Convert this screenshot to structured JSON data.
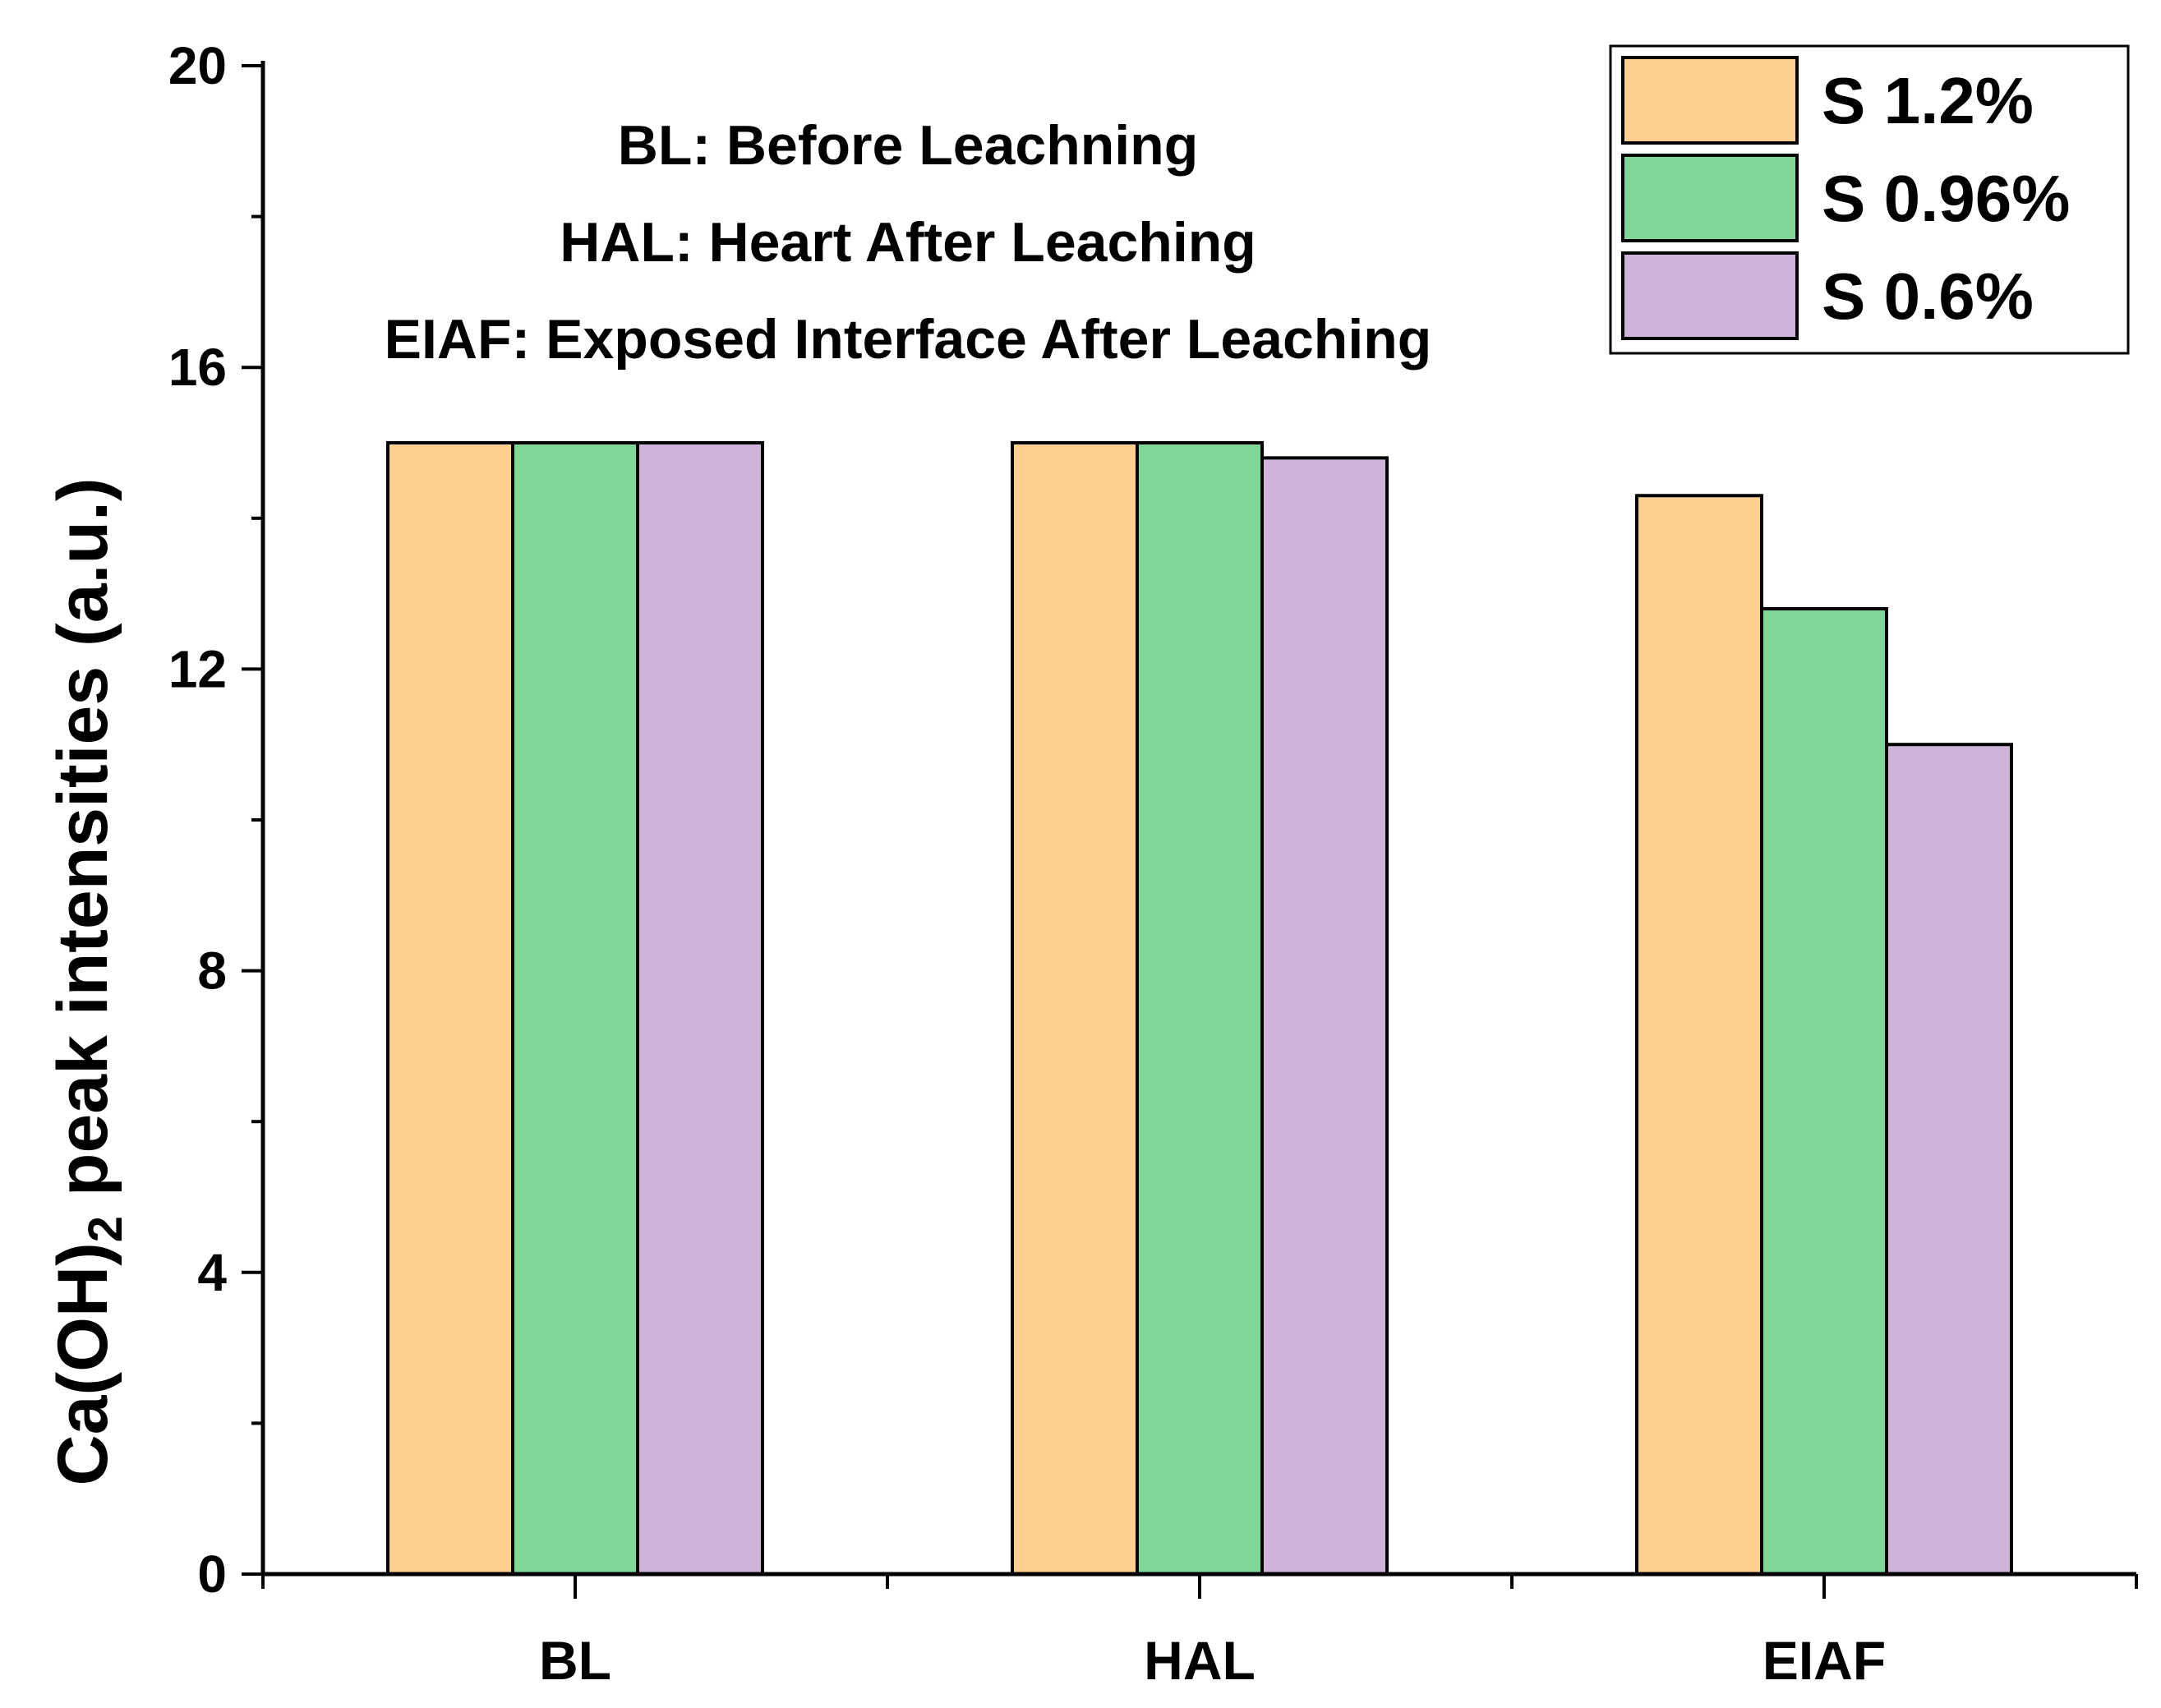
{
  "chart_data": {
    "type": "bar",
    "categories": [
      "BL",
      "HAL",
      "EIAF"
    ],
    "series": [
      {
        "name": "S 1.2%",
        "values": [
          15.0,
          15.0,
          14.3
        ],
        "color": "#FDD08F"
      },
      {
        "name": "S 0.96%",
        "values": [
          15.0,
          15.0,
          12.8
        ],
        "color": "#7FD699"
      },
      {
        "name": "S 0.6%",
        "values": [
          15.0,
          14.8,
          11.0
        ],
        "color": "#CDB4D8"
      }
    ],
    "ylabel_main": "Ca(OH)",
    "ylabel_sub": "2",
    "ylabel_rest": " peak intensities (a.u.)",
    "xlabel": "",
    "ylim": [
      0,
      20
    ],
    "yticks": [
      0,
      4,
      8,
      12,
      16,
      20
    ],
    "grid": false,
    "legend_position": "top-right",
    "annotations": [
      "BL: Before Leachning",
      "HAL: Heart After Leaching",
      "EIAF: Exposed Interface After Leaching"
    ]
  }
}
